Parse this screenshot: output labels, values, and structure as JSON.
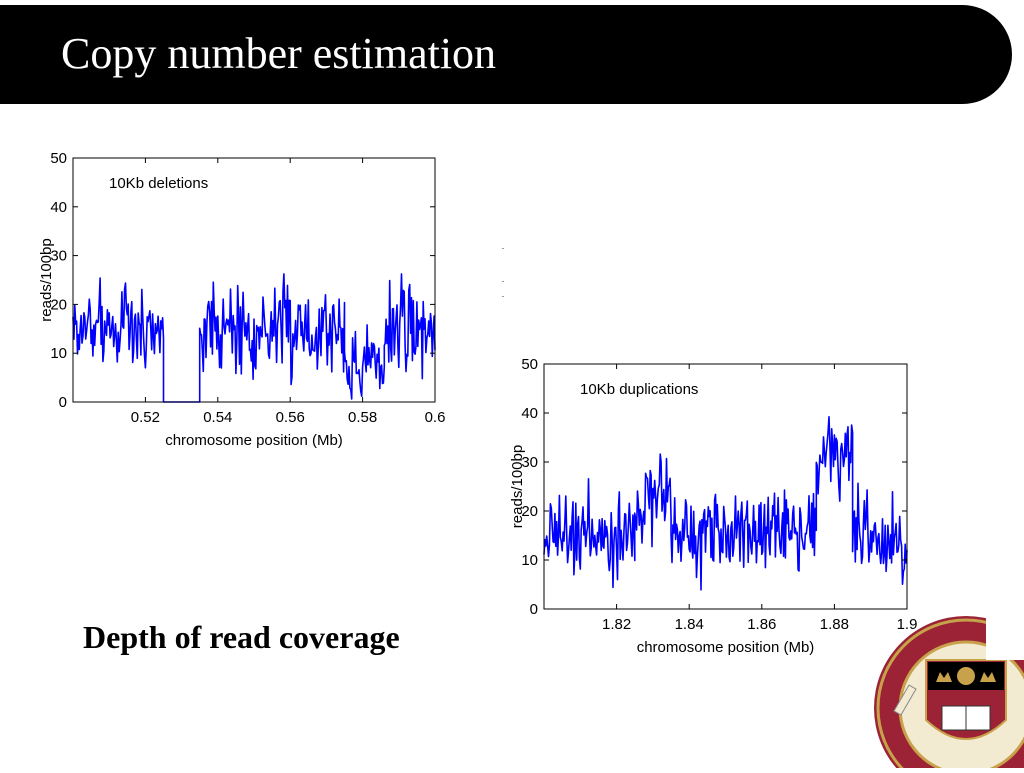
{
  "slide": {
    "title": "Copy number estimation",
    "caption": "Depth of read coverage"
  },
  "colors": {
    "title_bar": "#000000",
    "title_text": "#ffffff",
    "series": "#0000ff",
    "seal_red": "#9b2335",
    "seal_gold": "#c8a24a"
  },
  "logo": {
    "icon": "university-seal-icon"
  },
  "chart_data": [
    {
      "type": "line",
      "annotation": "10Kb deletions",
      "title": "",
      "xlabel": "chromosome position (Mb)",
      "ylabel": "reads/100bp",
      "xlim": [
        0.5,
        0.6
      ],
      "ylim": [
        0,
        50
      ],
      "xticks": [
        0.52,
        0.54,
        0.56,
        0.58,
        0.6
      ],
      "xtick_labels": [
        "0.52",
        "0.54",
        "0.56",
        "0.58",
        "0.6"
      ],
      "yticks": [
        0,
        10,
        20,
        30,
        40,
        50
      ],
      "ytick_labels": [
        "0",
        "10",
        "20",
        "30",
        "40",
        "50"
      ],
      "grid": false,
      "noise": {
        "spread": 7,
        "step_mb": 0.00025,
        "seed": 7
      },
      "segments": [
        {
          "x0": 0.5,
          "x1": 0.525,
          "mean": 15
        },
        {
          "x0": 0.525,
          "x1": 0.535,
          "mean": 0,
          "flat": true
        },
        {
          "x0": 0.535,
          "x1": 0.575,
          "mean": 15
        },
        {
          "x0": 0.575,
          "x1": 0.586,
          "mean": 7.5
        },
        {
          "x0": 0.586,
          "x1": 0.6,
          "mean": 15
        }
      ]
    },
    {
      "type": "line",
      "annotation": "10Kb duplications",
      "title": "",
      "xlabel": "chromosome position (Mb)",
      "ylabel": "reads/100bp",
      "xlim": [
        1.8,
        1.9
      ],
      "ylim": [
        0,
        50
      ],
      "xticks": [
        1.82,
        1.84,
        1.86,
        1.88,
        1.9
      ],
      "xtick_labels": [
        "1.82",
        "1.84",
        "1.86",
        "1.88",
        "1.9"
      ],
      "yticks": [
        0,
        10,
        20,
        30,
        40,
        50
      ],
      "ytick_labels": [
        "0",
        "10",
        "20",
        "30",
        "40",
        "50"
      ],
      "grid": false,
      "noise": {
        "spread": 7,
        "step_mb": 0.00025,
        "seed": 19
      },
      "segments": [
        {
          "x0": 1.8,
          "x1": 1.825,
          "mean": 15
        },
        {
          "x0": 1.825,
          "x1": 1.835,
          "mean": 23
        },
        {
          "x0": 1.835,
          "x1": 1.875,
          "mean": 15
        },
        {
          "x0": 1.875,
          "x1": 1.885,
          "mean": 31
        },
        {
          "x0": 1.885,
          "x1": 1.9,
          "mean": 14
        }
      ]
    }
  ]
}
